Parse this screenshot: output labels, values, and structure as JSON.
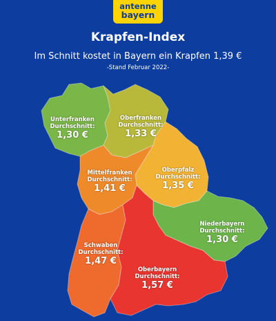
{
  "logo": {
    "line1": "antenne",
    "line2": "bayern"
  },
  "title": "Krapfen-Index",
  "subtitle": "Im Schnitt kostet in Bayern ein Krapfen 1,39 €",
  "stand": "-Stand Februar 2022-",
  "regions": [
    {
      "name": "Unterfranken",
      "avg_label": "Durchschnitt:",
      "price": "1,30 €",
      "color": "#7ab648"
    },
    {
      "name": "Oberfranken",
      "avg_label": "Durchschnitt:",
      "price": "1,33 €",
      "color": "#b8b83a"
    },
    {
      "name": "Oberpfalz",
      "avg_label": "Durchschnitt:",
      "price": "1,35 €",
      "color": "#f2b233"
    },
    {
      "name": "Mittelfranken",
      "avg_label": "Durchschnitt:",
      "price": "1,41 €",
      "color": "#ef8a2b"
    },
    {
      "name": "Niederbayern",
      "avg_label": "Durchschnitt:",
      "price": "1,30 €",
      "color": "#6db54a"
    },
    {
      "name": "Schwaben",
      "avg_label": "Durchschnitt:",
      "price": "1,47 €",
      "color": "#ee6a2d"
    },
    {
      "name": "Oberbayern",
      "avg_label": "Durchschnitt:",
      "price": "1,57 €",
      "color": "#e8352f"
    }
  ]
}
